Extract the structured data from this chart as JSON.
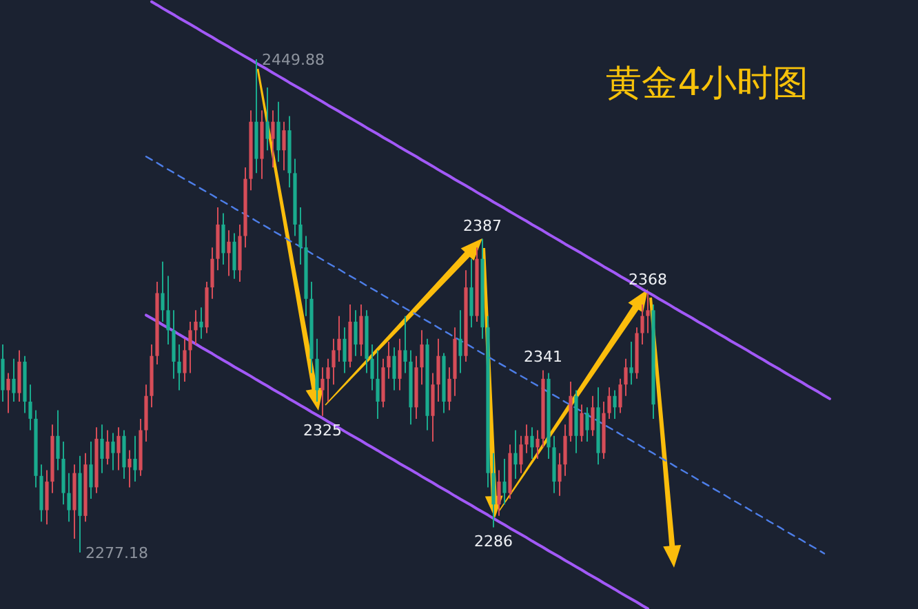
{
  "chart_data": {
    "type": "candlestick",
    "title": "黄金4小时图",
    "categories": [
      null,
      null,
      null,
      null,
      null,
      null,
      null,
      null,
      null,
      null,
      null,
      null,
      null,
      null,
      null,
      null,
      null,
      null,
      null,
      null,
      null,
      null,
      null,
      null,
      null,
      null,
      null,
      null,
      null,
      null,
      null,
      null,
      null,
      null,
      null,
      null,
      null,
      null,
      null,
      null,
      null,
      null,
      null,
      null,
      null,
      null,
      null,
      null,
      null,
      null,
      null,
      null,
      null,
      null,
      null,
      null,
      null,
      null,
      null,
      null,
      null,
      null,
      null,
      null,
      null,
      null,
      null,
      null,
      null,
      null,
      null,
      null,
      null,
      null,
      null,
      null,
      null,
      null,
      null,
      null,
      null,
      null,
      null,
      null,
      null,
      null,
      null,
      null,
      null,
      null,
      null,
      null,
      null,
      null,
      null,
      null,
      null,
      null,
      null,
      null,
      null,
      null,
      null,
      null,
      null,
      null,
      null,
      null,
      null,
      null,
      null,
      null,
      null,
      null,
      null,
      null,
      null,
      null,
      null,
      null,
      null,
      null,
      null,
      null,
      null,
      null,
      null,
      null,
      null,
      null,
      null,
      null,
      null,
      null,
      null,
      null,
      null,
      null,
      null,
      null,
      null,
      null,
      null,
      null,
      null,
      null,
      null,
      null,
      null,
      null,
      null,
      null,
      null
    ],
    "ohlc": [
      [
        2345,
        2350,
        2330,
        2334
      ],
      [
        2334,
        2340,
        2326,
        2338
      ],
      [
        2338,
        2345,
        2330,
        2333
      ],
      [
        2333,
        2348,
        2330,
        2344
      ],
      [
        2344,
        2346,
        2326,
        2330
      ],
      [
        2330,
        2336,
        2320,
        2324
      ],
      [
        2324,
        2327,
        2300,
        2304
      ],
      [
        2304,
        2308,
        2288,
        2292
      ],
      [
        2292,
        2306,
        2287,
        2302
      ],
      [
        2302,
        2322,
        2298,
        2318
      ],
      [
        2318,
        2327,
        2306,
        2310
      ],
      [
        2310,
        2316,
        2294,
        2298
      ],
      [
        2298,
        2305,
        2288,
        2292
      ],
      [
        2292,
        2308,
        2282,
        2305
      ],
      [
        2305,
        2311,
        2277.18,
        2290
      ],
      [
        2290,
        2312,
        2288,
        2308
      ],
      [
        2308,
        2316,
        2296,
        2300
      ],
      [
        2300,
        2321,
        2298,
        2317
      ],
      [
        2317,
        2322,
        2305,
        2310
      ],
      [
        2310,
        2320,
        2308,
        2316
      ],
      [
        2316,
        2319,
        2306,
        2312
      ],
      [
        2312,
        2321,
        2306,
        2318
      ],
      [
        2318,
        2320,
        2303,
        2307
      ],
      [
        2307,
        2313,
        2300,
        2310
      ],
      [
        2310,
        2318,
        2302,
        2306
      ],
      [
        2306,
        2324,
        2304,
        2320
      ],
      [
        2320,
        2336,
        2316,
        2332
      ],
      [
        2332,
        2350,
        2328,
        2346
      ],
      [
        2346,
        2372,
        2343,
        2368
      ],
      [
        2368,
        2379,
        2358,
        2362
      ],
      [
        2362,
        2374,
        2350,
        2355
      ],
      [
        2355,
        2362,
        2338,
        2344
      ],
      [
        2344,
        2350,
        2334,
        2340
      ],
      [
        2340,
        2352,
        2337,
        2348
      ],
      [
        2348,
        2358,
        2340,
        2355
      ],
      [
        2355,
        2362,
        2350,
        2358
      ],
      [
        2358,
        2363,
        2352,
        2356
      ],
      [
        2356,
        2372,
        2354,
        2370
      ],
      [
        2370,
        2384,
        2366,
        2380
      ],
      [
        2380,
        2398,
        2376,
        2392
      ],
      [
        2392,
        2396,
        2378,
        2382
      ],
      [
        2382,
        2390,
        2374,
        2386
      ],
      [
        2386,
        2389,
        2373,
        2376
      ],
      [
        2376,
        2392,
        2372,
        2388
      ],
      [
        2388,
        2412,
        2384,
        2408
      ],
      [
        2408,
        2432,
        2404,
        2428
      ],
      [
        2428,
        2449.88,
        2410,
        2415
      ],
      [
        2415,
        2432,
        2408,
        2428
      ],
      [
        2428,
        2440,
        2418,
        2422
      ],
      [
        2422,
        2432,
        2412,
        2428
      ],
      [
        2428,
        2435,
        2414,
        2418
      ],
      [
        2418,
        2428,
        2411,
        2425
      ],
      [
        2425,
        2430,
        2405,
        2410
      ],
      [
        2410,
        2415,
        2388,
        2392
      ],
      [
        2392,
        2398,
        2378,
        2384
      ],
      [
        2384,
        2388,
        2360,
        2366
      ],
      [
        2366,
        2372,
        2340,
        2345
      ],
      [
        2345,
        2352,
        2330,
        2334
      ],
      [
        2334,
        2342,
        2325,
        2338
      ],
      [
        2338,
        2345,
        2330,
        2342
      ],
      [
        2342,
        2352,
        2336,
        2348
      ],
      [
        2348,
        2360,
        2344,
        2352
      ],
      [
        2352,
        2356,
        2340,
        2344
      ],
      [
        2344,
        2364,
        2342,
        2358
      ],
      [
        2358,
        2362,
        2346,
        2350
      ],
      [
        2350,
        2364,
        2346,
        2360
      ],
      [
        2360,
        2362,
        2340,
        2345
      ],
      [
        2345,
        2350,
        2334,
        2338
      ],
      [
        2338,
        2348,
        2324,
        2330
      ],
      [
        2330,
        2345,
        2328,
        2342
      ],
      [
        2342,
        2351,
        2338,
        2346
      ],
      [
        2346,
        2349,
        2334,
        2338
      ],
      [
        2338,
        2352,
        2334,
        2348
      ],
      [
        2348,
        2360,
        2340,
        2344
      ],
      [
        2344,
        2348,
        2322,
        2328
      ],
      [
        2328,
        2346,
        2324,
        2342
      ],
      [
        2342,
        2355,
        2336,
        2350
      ],
      [
        2350,
        2352,
        2320,
        2325
      ],
      [
        2325,
        2340,
        2316,
        2336
      ],
      [
        2336,
        2352,
        2330,
        2346
      ],
      [
        2346,
        2347,
        2326,
        2330
      ],
      [
        2330,
        2342,
        2327,
        2338
      ],
      [
        2338,
        2356,
        2332,
        2352
      ],
      [
        2352,
        2362,
        2340,
        2346
      ],
      [
        2346,
        2376,
        2344,
        2370
      ],
      [
        2370,
        2380,
        2356,
        2360
      ],
      [
        2360,
        2384,
        2358,
        2380
      ],
      [
        2380,
        2387,
        2352,
        2356
      ],
      [
        2356,
        2360,
        2300,
        2305
      ],
      [
        2305,
        2312,
        2286,
        2294
      ],
      [
        2294,
        2306,
        2290,
        2302
      ],
      [
        2302,
        2310,
        2294,
        2298
      ],
      [
        2298,
        2315,
        2296,
        2312
      ],
      [
        2312,
        2320,
        2303,
        2308
      ],
      [
        2308,
        2318,
        2305,
        2315
      ],
      [
        2315,
        2322,
        2312,
        2318
      ],
      [
        2318,
        2321,
        2310,
        2314
      ],
      [
        2314,
        2320,
        2310,
        2317
      ],
      [
        2317,
        2341,
        2314,
        2338
      ],
      [
        2338,
        2340,
        2310,
        2314
      ],
      [
        2314,
        2318,
        2298,
        2302
      ],
      [
        2302,
        2312,
        2297,
        2308
      ],
      [
        2308,
        2322,
        2304,
        2318
      ],
      [
        2318,
        2337,
        2316,
        2332
      ],
      [
        2332,
        2334,
        2312,
        2318
      ],
      [
        2318,
        2329,
        2316,
        2326
      ],
      [
        2326,
        2328,
        2316,
        2320
      ],
      [
        2320,
        2332,
        2318,
        2328
      ],
      [
        2328,
        2335,
        2308,
        2312
      ],
      [
        2312,
        2330,
        2310,
        2326
      ],
      [
        2326,
        2335,
        2324,
        2332
      ],
      [
        2332,
        2334,
        2324,
        2328
      ],
      [
        2328,
        2338,
        2326,
        2336
      ],
      [
        2336,
        2345,
        2332,
        2342
      ],
      [
        2342,
        2351,
        2336,
        2340
      ],
      [
        2340,
        2356,
        2338,
        2354
      ],
      [
        2354,
        2364,
        2350,
        2360
      ],
      [
        2360,
        2368,
        2354,
        2362
      ],
      [
        2362,
        2364,
        2324,
        2329
      ],
      null,
      null,
      null,
      null,
      null,
      null,
      null,
      null,
      null,
      null,
      null,
      null,
      null,
      null,
      null,
      null,
      null,
      null,
      null,
      null,
      null,
      null,
      null,
      null,
      null,
      null,
      null,
      null,
      null,
      null,
      null,
      null,
      null,
      null
    ],
    "colors": [
      "#1aab8e",
      "#d64d58",
      "#1aab8e",
      "#d64d58",
      "#1aab8e",
      "#1aab8e",
      "#1aab8e",
      "#1aab8e",
      "#d64d58",
      "#d64d58",
      "#1aab8e",
      "#1aab8e",
      "#1aab8e",
      "#d64d58",
      "#1aab8e",
      "#d64d58",
      "#1aab8e",
      "#d64d58",
      "#1aab8e",
      "#d64d58",
      "#1aab8e",
      "#d64d58",
      "#1aab8e",
      "#d64d58",
      "#1aab8e",
      "#d64d58",
      "#d64d58",
      "#d64d58",
      "#d64d58",
      "#1aab8e",
      "#1aab8e",
      "#1aab8e",
      "#1aab8e",
      "#d64d58",
      "#d64d58",
      "#d64d58",
      "#1aab8e",
      "#d64d58",
      "#d64d58",
      "#d64d58",
      "#1aab8e",
      "#d64d58",
      "#1aab8e",
      "#d64d58",
      "#d64d58",
      "#d64d58",
      "#1aab8e",
      "#d64d58",
      "#1aab8e",
      "#d64d58",
      "#1aab8e",
      "#d64d58",
      "#1aab8e",
      "#1aab8e",
      "#1aab8e",
      "#1aab8e",
      "#1aab8e",
      "#1aab8e",
      "#d64d58",
      "#d64d58",
      "#d64d58",
      "#d64d58",
      "#1aab8e",
      "#d64d58",
      "#1aab8e",
      "#d64d58",
      "#1aab8e",
      "#1aab8e",
      "#1aab8e",
      "#d64d58",
      "#d64d58",
      "#1aab8e",
      "#d64d58",
      "#1aab8e",
      "#1aab8e",
      "#d64d58",
      "#d64d58",
      "#1aab8e",
      "#d64d58",
      "#d64d58",
      "#1aab8e",
      "#d64d58",
      "#d64d58",
      "#1aab8e",
      "#d64d58",
      "#1aab8e",
      "#d64d58",
      "#1aab8e",
      "#1aab8e",
      "#1aab8e",
      "#d64d58",
      "#1aab8e",
      "#d64d58",
      "#1aab8e",
      "#d64d58",
      "#d64d58",
      "#1aab8e",
      "#d64d58",
      "#d64d58",
      "#1aab8e",
      "#1aab8e",
      "#d64d58",
      "#d64d58",
      "#d64d58",
      "#1aab8e",
      "#d64d58",
      "#1aab8e",
      "#d64d58",
      "#1aab8e",
      "#d64d58",
      "#d64d58",
      "#1aab8e",
      "#d64d58",
      "#d64d58",
      "#1aab8e",
      "#d64d58",
      "#d64d58",
      "#d64d58",
      "#1aab8e",
      null,
      null,
      null,
      null,
      null,
      null,
      null,
      null,
      null,
      null,
      null,
      null,
      null,
      null,
      null,
      null,
      null,
      null,
      null,
      null,
      null,
      null,
      null,
      null,
      null,
      null,
      null,
      null,
      null,
      null,
      null,
      null,
      null,
      null
    ],
    "series": [
      {
        "type": "line",
        "color": "#a259f7",
        "values": [
          null,
          null,
          null,
          null,
          null,
          null,
          null,
          null,
          null,
          null,
          null,
          null,
          null,
          null,
          null,
          null,
          null,
          null,
          null,
          null,
          null,
          null,
          null,
          null,
          null,
          null,
          null,
          2470.0,
          2468.9,
          2467.7,
          2466.6,
          2465.5,
          2464.3,
          2463.2,
          2462.1,
          2461.0,
          2459.8,
          2458.7,
          2457.6,
          2456.4,
          2455.3,
          2454.2,
          2453.0,
          2451.9,
          2450.8,
          2449.7,
          2448.5,
          2447.4,
          2446.3,
          2445.1,
          2444.0,
          2442.9,
          2441.7,
          2440.6,
          2439.5,
          2438.4,
          2437.2,
          2436.1,
          2435.0,
          2433.8,
          2432.7,
          2431.6,
          2430.4,
          2429.3,
          2428.2,
          2427.1,
          2425.9,
          2424.8,
          2423.7,
          2422.5,
          2421.4,
          2420.3,
          2419.1,
          2418.0,
          2416.9,
          2415.8,
          2414.6,
          2413.5,
          2412.4,
          2411.2,
          2410.1,
          2409.0,
          2407.8,
          2406.7,
          2405.6,
          2404.5,
          2403.3,
          2402.2,
          2401.1,
          2399.9,
          2398.8,
          2397.7,
          2396.5,
          2395.4,
          2394.3,
          2393.2,
          2392.0,
          2390.9,
          2389.8,
          2388.6,
          2387.5,
          2386.4,
          2385.2,
          2384.1,
          2383.0,
          2381.9,
          2380.7,
          2379.6,
          2378.5,
          2377.3,
          2376.2,
          2375.1,
          2373.9,
          2372.8,
          2371.7,
          2370.6,
          2369.4,
          2368.3,
          2367.2,
          2366.0,
          2364.9,
          2363.8,
          2362.6,
          2361.5,
          2360.4,
          2359.3,
          2358.1,
          2357.0,
          2355.9,
          2354.7,
          2353.6,
          2352.5,
          2351.3,
          2350.2,
          2349.1,
          2348.0,
          2346.8,
          2345.7,
          2344.6,
          2343.4,
          2342.3,
          2341.2,
          2340.0,
          2338.9,
          2337.8,
          2336.7,
          2335.5,
          2334.4,
          2333.3,
          2332.1,
          2331.0,
          null,
          null
        ]
      },
      {
        "type": "line",
        "color": "#a259f7",
        "values": [
          null,
          null,
          null,
          null,
          null,
          null,
          null,
          null,
          null,
          null,
          null,
          null,
          null,
          null,
          null,
          null,
          null,
          null,
          null,
          null,
          null,
          null,
          null,
          null,
          null,
          null,
          2360.3,
          2359.2,
          2358.1,
          2356.9,
          2355.8,
          2354.7,
          2353.5,
          2352.4,
          2351.3,
          2350.2,
          2349.0,
          2347.9,
          2346.8,
          2345.6,
          2344.5,
          2343.4,
          2342.2,
          2341.1,
          2340.0,
          2338.9,
          2337.7,
          2336.6,
          2335.5,
          2334.3,
          2333.2,
          2332.1,
          2330.9,
          2329.8,
          2328.7,
          2327.6,
          2326.4,
          2325.3,
          2324.2,
          2323.0,
          2321.9,
          2320.8,
          2319.6,
          2318.5,
          2317.4,
          2316.3,
          2315.1,
          2314.0,
          2312.9,
          2311.7,
          2310.6,
          2309.5,
          2308.3,
          2307.2,
          2306.1,
          2305.0,
          2303.8,
          2302.7,
          2301.6,
          2300.4,
          2299.3,
          2298.2,
          2297.0,
          2295.9,
          2294.8,
          2293.7,
          2292.5,
          2291.4,
          2290.3,
          2289.1,
          2288.0,
          2286.9,
          2285.7,
          2284.6,
          2283.5,
          2282.4,
          2281.2,
          2280.1,
          2279.0,
          2277.8,
          2276.7,
          2275.6,
          2274.4,
          2273.3,
          2272.2,
          2271.1,
          2269.9,
          2268.8,
          2267.7,
          2266.5,
          2265.4,
          2264.3,
          2263.1,
          2262.0,
          2260.9,
          2259.8,
          2258.6,
          2257.5,
          null,
          null,
          null,
          null,
          null,
          null,
          null,
          null,
          null,
          null,
          null,
          null,
          null,
          null,
          null,
          null,
          null,
          null,
          null,
          null,
          null,
          null,
          null,
          null,
          null,
          null,
          null,
          null,
          null,
          null,
          null,
          null,
          null,
          null,
          null
        ]
      },
      {
        "type": "line",
        "color": "#4d7ee8",
        "line_style": "dashed",
        "values": [
          null,
          null,
          null,
          null,
          null,
          null,
          null,
          null,
          null,
          null,
          null,
          null,
          null,
          null,
          null,
          null,
          null,
          null,
          null,
          null,
          null,
          null,
          null,
          null,
          null,
          null,
          2415.8,
          2414.7,
          2413.6,
          2412.4,
          2411.3,
          2410.2,
          2409.0,
          2407.9,
          2406.8,
          2405.7,
          2404.5,
          2403.4,
          2402.3,
          2401.1,
          2400.0,
          2398.9,
          2397.7,
          2396.6,
          2395.5,
          2394.4,
          2393.2,
          2392.1,
          2391.0,
          2389.8,
          2388.7,
          2387.6,
          2386.4,
          2385.3,
          2384.2,
          2383.1,
          2381.9,
          2380.8,
          2379.7,
          2378.5,
          2377.4,
          2376.3,
          2375.1,
          2374.0,
          2372.9,
          2371.8,
          2370.6,
          2369.5,
          2368.4,
          2367.2,
          2366.1,
          2365.0,
          2363.8,
          2362.7,
          2361.6,
          2360.5,
          2359.3,
          2358.2,
          2357.1,
          2355.9,
          2354.8,
          2353.7,
          2352.5,
          2351.4,
          2350.3,
          2349.2,
          2348.0,
          2346.9,
          2345.8,
          2344.6,
          2343.5,
          2342.4,
          2341.2,
          2340.1,
          2339.0,
          2337.9,
          2336.7,
          2335.6,
          2334.5,
          2333.3,
          2332.2,
          2331.1,
          2329.9,
          2328.8,
          2327.7,
          2326.6,
          2325.4,
          2324.3,
          2323.2,
          2322.0,
          2320.9,
          2319.8,
          2318.6,
          2317.5,
          2316.4,
          2315.3,
          2314.1,
          2313.0,
          2311.9,
          2310.7,
          2309.6,
          2308.5,
          2307.3,
          2306.2,
          2305.1,
          2304.0,
          2302.8,
          2301.7,
          2300.6,
          2299.4,
          2298.3,
          2297.2,
          2296.0,
          2294.9,
          2293.8,
          2292.7,
          2291.5,
          2290.4,
          2289.3,
          2288.1,
          2287.0,
          2285.9,
          2284.7,
          2283.6,
          2282.5,
          2281.4,
          2280.2,
          2279.1,
          2278.0,
          2276.8,
          null,
          null,
          null
        ]
      }
    ],
    "annotations": [
      "2449.88",
      "2277.18",
      {
        "text": "2325",
        "y": 2325
      },
      {
        "text": "2387",
        "y": 2387
      },
      {
        "text": "2286",
        "y": 2286
      },
      {
        "text": "2341",
        "y": 2341
      },
      {
        "text": "2368",
        "y": 2368
      }
    ]
  }
}
